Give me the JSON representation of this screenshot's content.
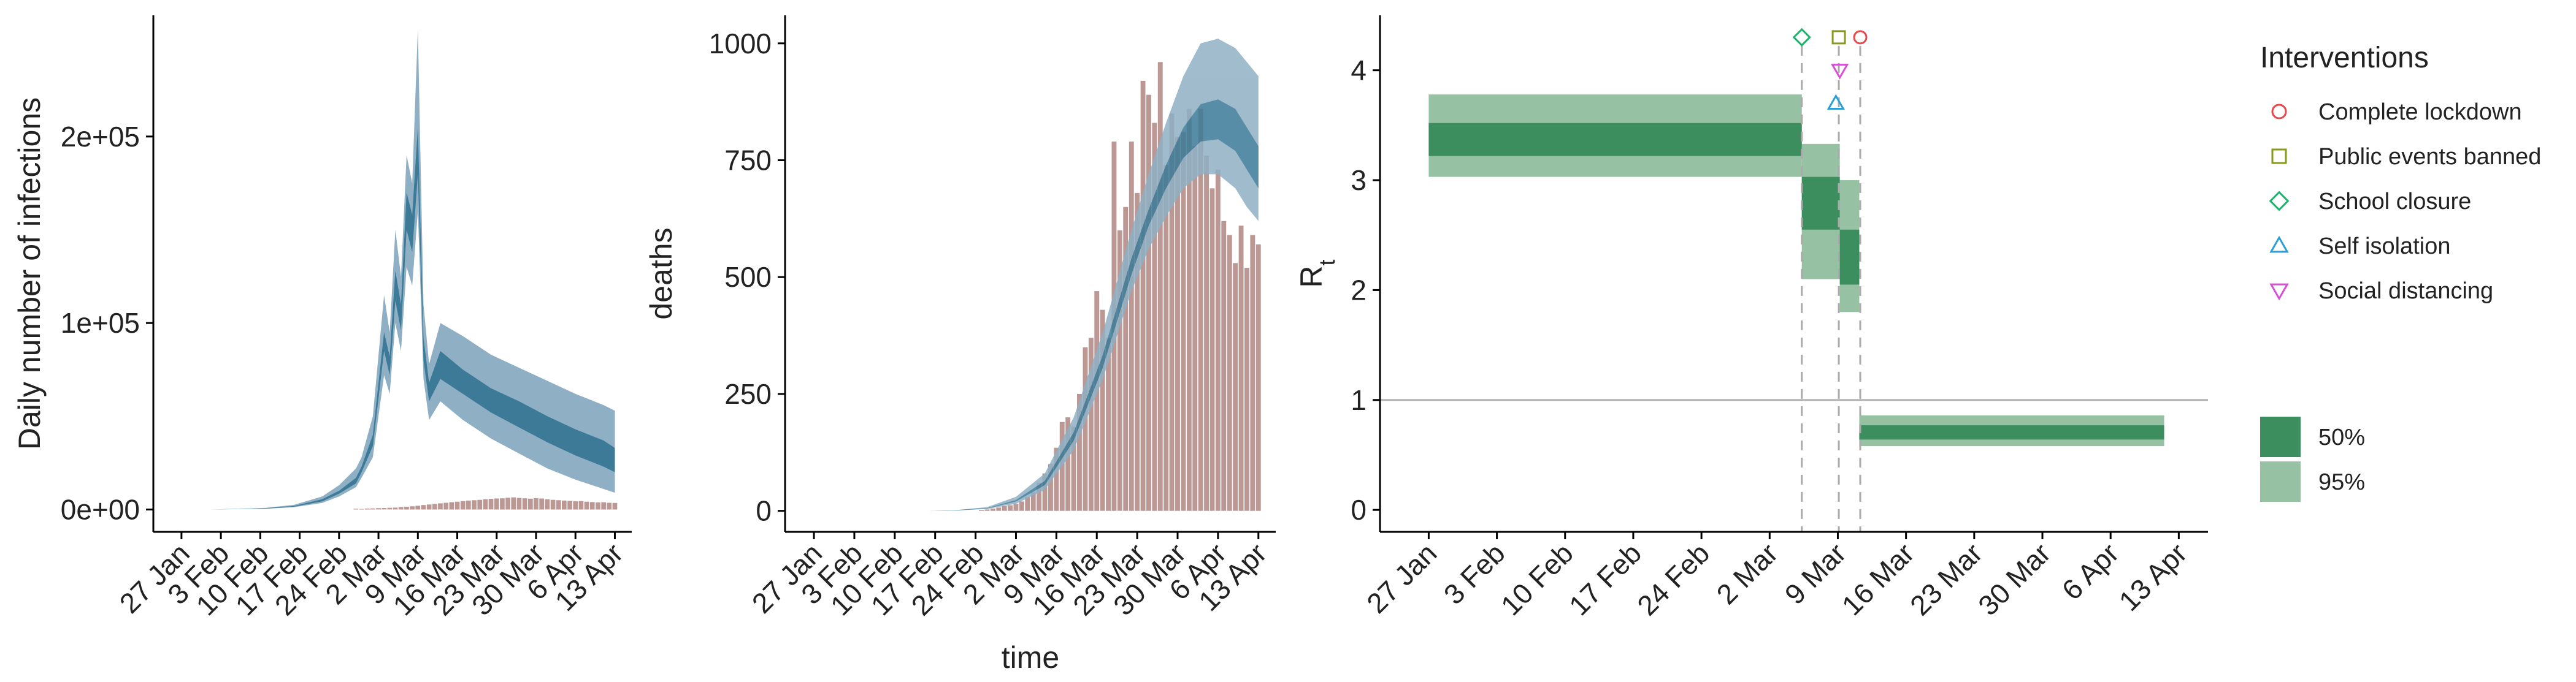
{
  "chart_data": [
    {
      "type": "area",
      "ylabel": "Daily number of infections",
      "xlabel": "",
      "ylim": [
        -12000,
        265000
      ],
      "yticks": [
        0,
        100000,
        200000
      ],
      "ytick_labels": [
        "0e+00",
        "1e+05",
        "2e+05"
      ],
      "x_tick_labels": [
        "27 Jan",
        "3 Feb",
        "10 Feb",
        "17 Feb",
        "24 Feb",
        "2 Mar",
        "9 Mar",
        "16 Mar",
        "23 Mar",
        "30 Mar",
        "6 Apr",
        "13 Apr"
      ],
      "x_tick_days": [
        5,
        12,
        19,
        26,
        33,
        40,
        47,
        54,
        61,
        68,
        75,
        82
      ],
      "x_range_days": [
        0,
        85
      ],
      "bands": {
        "x_days": [
          3,
          10,
          15,
          20,
          25,
          30,
          33,
          36,
          37,
          39,
          41,
          42,
          43,
          44,
          45,
          46,
          47,
          48,
          49,
          51,
          55,
          60,
          65,
          70,
          75,
          80,
          82
        ],
        "ci95_upper": [
          0,
          100,
          300,
          900,
          2500,
          7000,
          13000,
          22000,
          28000,
          50000,
          115000,
          95000,
          150000,
          125000,
          190000,
          175000,
          258000,
          110000,
          78000,
          100000,
          93000,
          83000,
          76000,
          69000,
          62000,
          56000,
          53000
        ],
        "ci95_lower": [
          0,
          50,
          150,
          400,
          1200,
          3500,
          7000,
          12000,
          17000,
          28000,
          72000,
          62000,
          100000,
          85000,
          130000,
          120000,
          160000,
          70000,
          48000,
          58000,
          48000,
          38000,
          30000,
          22000,
          16000,
          11000,
          9000
        ],
        "ci50_upper": [
          0,
          80,
          240,
          700,
          1900,
          5500,
          10000,
          17000,
          23000,
          40000,
          95000,
          82000,
          128000,
          110000,
          170000,
          158000,
          205000,
          92000,
          68000,
          85000,
          75000,
          65000,
          58000,
          50000,
          43000,
          37000,
          33000
        ],
        "ci50_lower": [
          0,
          60,
          180,
          500,
          1500,
          4400,
          8500,
          14000,
          20000,
          34000,
          85000,
          72000,
          112000,
          96000,
          150000,
          138000,
          180000,
          80000,
          58000,
          70000,
          62000,
          52000,
          44000,
          36000,
          29000,
          23000,
          20000
        ]
      },
      "reported_cases": {
        "x_days": [
          36,
          37,
          38,
          39,
          40,
          41,
          42,
          43,
          44,
          45,
          46,
          47,
          48,
          49,
          50,
          51,
          52,
          53,
          54,
          55,
          56,
          57,
          58,
          59,
          60,
          61,
          62,
          63,
          64,
          65,
          66,
          67,
          68,
          69,
          70,
          71,
          72,
          73,
          74,
          75,
          76,
          77,
          78,
          79,
          80,
          81,
          82
        ],
        "values": [
          400,
          300,
          500,
          600,
          700,
          800,
          900,
          1000,
          1300,
          1500,
          1700,
          2000,
          2400,
          2700,
          3000,
          3300,
          3600,
          3900,
          4200,
          4500,
          4800,
          5000,
          5200,
          5500,
          5700,
          5900,
          6000,
          6300,
          6500,
          6200,
          6000,
          5800,
          6100,
          5900,
          5500,
          5200,
          5000,
          4800,
          4600,
          4400,
          4500,
          4200,
          4000,
          3800,
          3900,
          3600,
          3500
        ]
      },
      "colors": {
        "ci95": "#8fb0c4",
        "ci50": "#3c7a98",
        "cases": "#b38a86"
      }
    },
    {
      "type": "area",
      "ylabel": "deaths",
      "xlabel": "time",
      "ylim": [
        -45,
        1060
      ],
      "yticks": [
        0,
        250,
        500,
        750,
        1000
      ],
      "ytick_labels": [
        "0",
        "250",
        "500",
        "750",
        "1000"
      ],
      "x_tick_labels": [
        "27 Jan",
        "3 Feb",
        "10 Feb",
        "17 Feb",
        "24 Feb",
        "2 Mar",
        "9 Mar",
        "16 Mar",
        "23 Mar",
        "30 Mar",
        "6 Apr",
        "13 Apr"
      ],
      "x_tick_days": [
        5,
        12,
        19,
        26,
        33,
        40,
        47,
        54,
        61,
        68,
        75,
        82
      ],
      "x_range_days": [
        0,
        85
      ],
      "bands": {
        "x_days": [
          25,
          30,
          35,
          40,
          45,
          50,
          55,
          60,
          63,
          66,
          69,
          72,
          75,
          78,
          80,
          82
        ],
        "ci95_upper": [
          0,
          2,
          8,
          30,
          80,
          200,
          380,
          600,
          720,
          830,
          930,
          1000,
          1010,
          990,
          960,
          930
        ],
        "ci95_lower": [
          0,
          1,
          4,
          15,
          45,
          130,
          280,
          470,
          560,
          630,
          690,
          720,
          720,
          690,
          650,
          620
        ],
        "ci50_upper": [
          0,
          2,
          6,
          23,
          64,
          168,
          332,
          540,
          645,
          740,
          820,
          870,
          880,
          860,
          820,
          780
        ],
        "ci50_lower": [
          0,
          1,
          5,
          20,
          55,
          150,
          305,
          505,
          610,
          690,
          755,
          790,
          795,
          770,
          730,
          690
        ]
      },
      "reported_deaths": {
        "x_days": [
          34,
          35,
          36,
          37,
          38,
          39,
          40,
          41,
          42,
          43,
          44,
          45,
          46,
          47,
          48,
          49,
          50,
          51,
          52,
          53,
          54,
          55,
          56,
          57,
          58,
          59,
          60,
          61,
          62,
          63,
          64,
          65,
          66,
          67,
          68,
          69,
          70,
          71,
          72,
          73,
          74,
          75,
          76,
          77,
          78,
          79,
          80,
          81,
          82
        ],
        "values": [
          2,
          3,
          5,
          7,
          10,
          12,
          15,
          20,
          30,
          40,
          60,
          80,
          100,
          135,
          190,
          200,
          180,
          250,
          350,
          370,
          470,
          430,
          370,
          790,
          600,
          650,
          790,
          680,
          920,
          890,
          830,
          960,
          740,
          850,
          800,
          810,
          860,
          780,
          860,
          760,
          690,
          730,
          620,
          590,
          530,
          610,
          520,
          590,
          570
        ]
      },
      "colors": {
        "ci95": "#8fb0c4",
        "ci50": "#3c7a98",
        "deaths": "#b38a86"
      }
    },
    {
      "type": "bar",
      "ylabel": "R",
      "ylabel_subscript": "t",
      "xlabel": "",
      "ylim": [
        -0.2,
        4.5
      ],
      "yticks": [
        0,
        1,
        2,
        3,
        4
      ],
      "ytick_labels": [
        "0",
        "1",
        "2",
        "3",
        "4"
      ],
      "x_tick_labels": [
        "27 Jan",
        "3 Feb",
        "10 Feb",
        "17 Feb",
        "24 Feb",
        "2 Mar",
        "9 Mar",
        "16 Mar",
        "23 Mar",
        "30 Mar",
        "6 Apr",
        "13 Apr"
      ],
      "x_tick_days": [
        5,
        12,
        19,
        26,
        33,
        40,
        47,
        54,
        61,
        68,
        75,
        82
      ],
      "x_range_days": [
        0,
        85
      ],
      "reference_line": 1,
      "rt_segments": [
        {
          "x_start": 5,
          "x_end": 43.3,
          "ci95": [
            3.03,
            3.78
          ],
          "ci50": [
            3.22,
            3.52
          ]
        },
        {
          "x_start": 43.3,
          "x_end": 47.2,
          "ci95": [
            2.1,
            3.33
          ],
          "ci50": [
            2.55,
            3.03
          ]
        },
        {
          "x_start": 47.2,
          "x_end": 49.2,
          "ci95": [
            1.8,
            3.0
          ],
          "ci50": [
            2.05,
            2.55
          ]
        },
        {
          "x_start": 49.2,
          "x_end": 80.5,
          "ci95": [
            0.58,
            0.86
          ],
          "ci50": [
            0.64,
            0.77
          ]
        }
      ],
      "interventions": [
        {
          "name": "Complete lockdown",
          "day": 49.3,
          "marker_y": 4.3,
          "shape": "circle",
          "color": "#e8474a"
        },
        {
          "name": "Public events banned",
          "day": 47.1,
          "marker_y": 4.3,
          "shape": "square",
          "color": "#8a9a1a"
        },
        {
          "name": "School closure",
          "day": 43.3,
          "marker_y": 4.3,
          "shape": "diamond",
          "color": "#1ab36a"
        },
        {
          "name": "Self isolation",
          "day": 46.8,
          "marker_y": 3.7,
          "shape": "triangle-up",
          "color": "#2a9fd6"
        },
        {
          "name": "Social distancing",
          "day": 47.2,
          "marker_y": 4.0,
          "shape": "triangle-down",
          "color": "#d64fd6"
        }
      ],
      "legend": {
        "interventions_title": "Interventions",
        "interval_labels": [
          "50%",
          "95%"
        ],
        "placement": "right"
      },
      "colors": {
        "ci50": "#3d8e5f",
        "ci95": "#96c1a3",
        "reference_line": "#b3b3b3",
        "vline": "#aaaaaa"
      }
    }
  ]
}
